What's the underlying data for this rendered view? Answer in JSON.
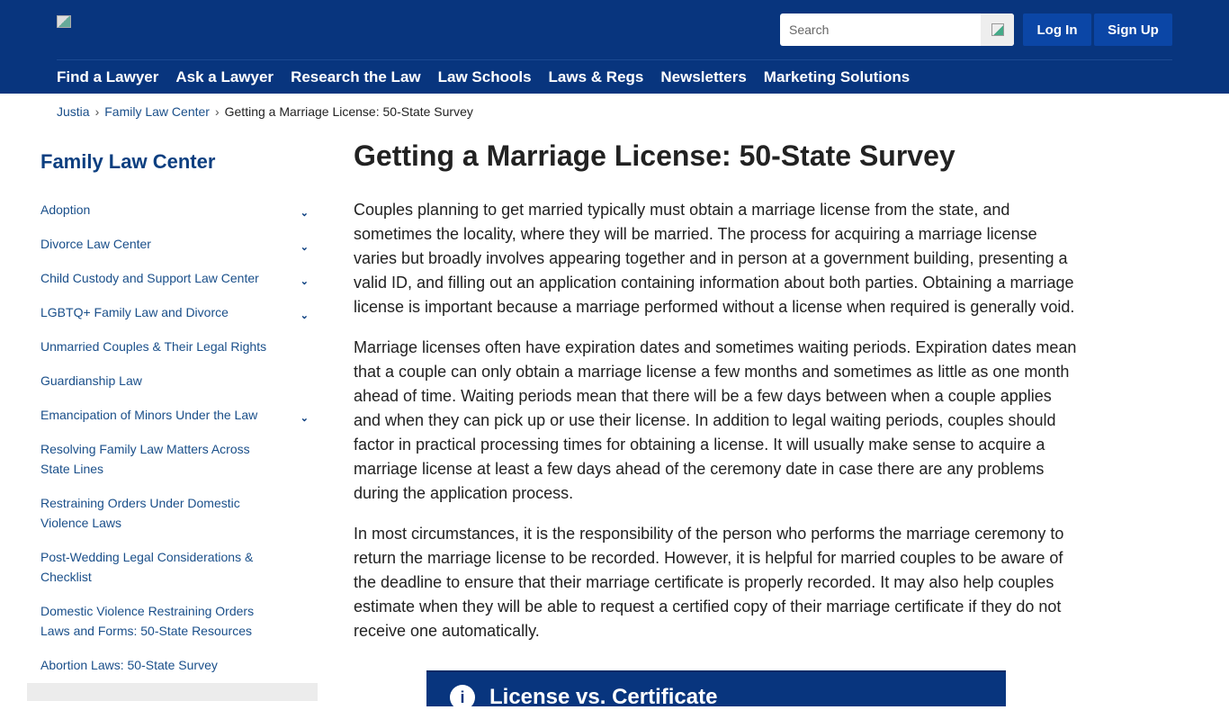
{
  "header": {
    "search_placeholder": "Search",
    "login": "Log In",
    "signup": "Sign Up",
    "nav": [
      "Find a Lawyer",
      "Ask a Lawyer",
      "Research the Law",
      "Law Schools",
      "Laws & Regs",
      "Newsletters",
      "Marketing Solutions"
    ]
  },
  "breadcrumb": {
    "items": [
      "Justia",
      "Family Law Center"
    ],
    "current": "Getting a Marriage License: 50-State Survey"
  },
  "sidebar": {
    "title": "Family Law Center",
    "items": [
      {
        "label": "Adoption",
        "expandable": true
      },
      {
        "label": "Divorce Law Center",
        "expandable": true
      },
      {
        "label": "Child Custody and Support Law Center",
        "expandable": true
      },
      {
        "label": "LGBTQ+ Family Law and Divorce",
        "expandable": true
      },
      {
        "label": "Unmarried Couples & Their Legal Rights",
        "expandable": false
      },
      {
        "label": "Guardianship Law",
        "expandable": false
      },
      {
        "label": "Emancipation of Minors Under the Law",
        "expandable": true
      },
      {
        "label": "Resolving Family Law Matters Across State Lines",
        "expandable": false
      },
      {
        "label": "Restraining Orders Under Domestic Violence Laws",
        "expandable": false
      },
      {
        "label": "Post-Wedding Legal Considerations & Checklist",
        "expandable": false
      },
      {
        "label": "Domestic Violence Restraining Orders Laws and Forms: 50-State Resources",
        "expandable": false
      },
      {
        "label": "Abortion Laws: 50-State Survey",
        "expandable": false
      }
    ]
  },
  "main": {
    "title": "Getting a Marriage License: 50-State Survey",
    "paragraphs": [
      "Couples planning to get married typically must obtain a marriage license from the state, and sometimes the locality, where they will be married. The process for acquiring a marriage license varies but broadly involves appearing together and in person at a government building, presenting a valid ID, and filling out an application containing information about both parties. Obtaining a marriage license is important because a marriage performed without a license when required is generally void.",
      "Marriage licenses often have expiration dates and sometimes waiting periods. Expiration dates mean that a couple can only obtain a marriage license a few months and sometimes as little as one month ahead of time. Waiting periods mean that there will be a few days between when a couple applies and when they can pick up or use their license. In addition to legal waiting periods, couples should factor in practical processing times for obtaining a license. It will usually make sense to acquire a marriage license at least a few days ahead of the ceremony date in case there are any problems during the application process.",
      "In most circumstances, it is the responsibility of the person who performs the marriage ceremony to return the marriage license to be recorded. However, it is helpful for married couples to be aware of the deadline to ensure that their marriage certificate is properly recorded. It may also help couples estimate when they will be able to request a certified copy of their marriage certificate if they do not receive one automatically."
    ],
    "callout": {
      "icon": "info-icon",
      "title": "License vs. Certificate"
    }
  }
}
